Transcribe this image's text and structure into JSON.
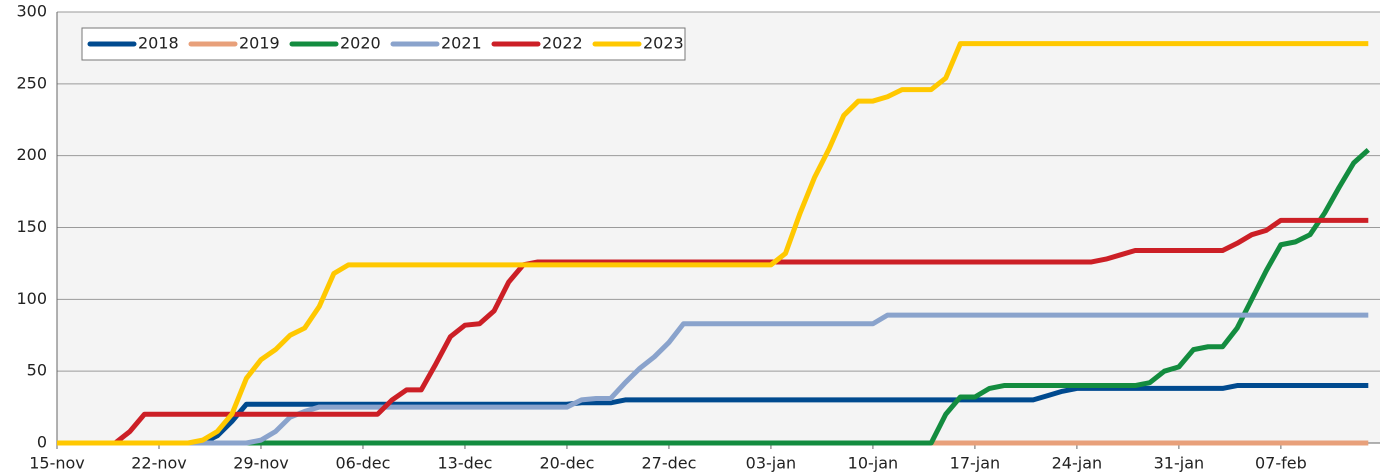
{
  "chart_data": {
    "type": "line",
    "categories": [
      "15-nov",
      null,
      null,
      null,
      null,
      null,
      null,
      "22-nov",
      null,
      null,
      null,
      null,
      null,
      null,
      "29-nov",
      null,
      null,
      null,
      null,
      null,
      null,
      "06-dec",
      null,
      null,
      null,
      null,
      null,
      null,
      "13-dec",
      null,
      null,
      null,
      null,
      null,
      null,
      "20-dec",
      null,
      null,
      null,
      null,
      null,
      null,
      "27-dec",
      null,
      null,
      null,
      null,
      null,
      null,
      "03-jan",
      null,
      null,
      null,
      null,
      null,
      null,
      "10-jan",
      null,
      null,
      null,
      null,
      null,
      null,
      "17-jan",
      null,
      null,
      null,
      null,
      null,
      null,
      "24-jan",
      null,
      null,
      null,
      null,
      null,
      null,
      "31-jan",
      null,
      null,
      null,
      null,
      null,
      null,
      "07-feb",
      null,
      null,
      null,
      null,
      null,
      null
    ],
    "series": [
      {
        "name": "2018",
        "color": "#004a8f",
        "values": [
          0,
          0,
          0,
          0,
          0,
          0,
          0,
          0,
          0,
          0,
          0,
          5,
          15,
          27,
          27,
          27,
          27,
          27,
          27,
          27,
          27,
          27,
          27,
          27,
          27,
          27,
          27,
          27,
          27,
          27,
          27,
          27,
          27,
          27,
          27,
          27,
          28,
          28,
          28,
          30,
          30,
          30,
          30,
          30,
          30,
          30,
          30,
          30,
          30,
          30,
          30,
          30,
          30,
          30,
          30,
          30,
          30,
          30,
          30,
          30,
          30,
          30,
          30,
          30,
          30,
          30,
          30,
          30,
          33,
          36,
          38,
          38,
          38,
          38,
          38,
          38,
          38,
          38,
          38,
          38,
          38,
          40,
          40,
          40,
          40,
          40,
          40,
          40,
          40,
          40,
          40
        ]
      },
      {
        "name": "2019",
        "color": "#e8a07a",
        "values": [
          0,
          0,
          0,
          0,
          0,
          0,
          0,
          0,
          0,
          0,
          0,
          0,
          0,
          0,
          0,
          0,
          0,
          0,
          0,
          0,
          0,
          0,
          0,
          0,
          0,
          0,
          0,
          0,
          0,
          0,
          0,
          0,
          0,
          0,
          0,
          0,
          0,
          0,
          0,
          0,
          0,
          0,
          0,
          0,
          0,
          0,
          0,
          0,
          0,
          0,
          0,
          0,
          0,
          0,
          0,
          0,
          0,
          0,
          0,
          0,
          0,
          0,
          0,
          0,
          0,
          0,
          0,
          0,
          0,
          0,
          0,
          0,
          0,
          0,
          0,
          0,
          0,
          0,
          0,
          0,
          0,
          0,
          0,
          0,
          0,
          0,
          0,
          0,
          0,
          0,
          0
        ]
      },
      {
        "name": "2020",
        "color": "#138c3f",
        "values": [
          0,
          0,
          0,
          0,
          0,
          0,
          0,
          0,
          0,
          0,
          0,
          0,
          0,
          0,
          0,
          0,
          0,
          0,
          0,
          0,
          0,
          0,
          0,
          0,
          0,
          0,
          0,
          0,
          0,
          0,
          0,
          0,
          0,
          0,
          0,
          0,
          0,
          0,
          0,
          0,
          0,
          0,
          0,
          0,
          0,
          0,
          0,
          0,
          0,
          0,
          0,
          0,
          0,
          0,
          0,
          0,
          0,
          0,
          0,
          0,
          0,
          20,
          32,
          32,
          38,
          40,
          40,
          40,
          40,
          40,
          40,
          40,
          40,
          40,
          40,
          42,
          50,
          53,
          65,
          67,
          67,
          80,
          100,
          120,
          138,
          140,
          145,
          160,
          178,
          195,
          204
        ]
      },
      {
        "name": "2021",
        "color": "#8aa3cc",
        "values": [
          0,
          0,
          0,
          0,
          0,
          0,
          0,
          0,
          0,
          0,
          0,
          0,
          0,
          0,
          2,
          8,
          18,
          22,
          25,
          25,
          25,
          25,
          25,
          25,
          25,
          25,
          25,
          25,
          25,
          25,
          25,
          25,
          25,
          25,
          25,
          25,
          30,
          31,
          31,
          42,
          52,
          60,
          70,
          83,
          83,
          83,
          83,
          83,
          83,
          83,
          83,
          83,
          83,
          83,
          83,
          83,
          83,
          89,
          89,
          89,
          89,
          89,
          89,
          89,
          89,
          89,
          89,
          89,
          89,
          89,
          89,
          89,
          89,
          89,
          89,
          89,
          89,
          89,
          89,
          89,
          89,
          89,
          89,
          89,
          89,
          89,
          89,
          89,
          89,
          89,
          89
        ]
      },
      {
        "name": "2022",
        "color": "#cc1f26",
        "values": [
          0,
          0,
          0,
          0,
          0,
          8,
          20,
          20,
          20,
          20,
          20,
          20,
          20,
          20,
          20,
          20,
          20,
          20,
          20,
          20,
          20,
          20,
          20,
          30,
          37,
          37,
          55,
          74,
          82,
          83,
          92,
          112,
          124,
          126,
          126,
          126,
          126,
          126,
          126,
          126,
          126,
          126,
          126,
          126,
          126,
          126,
          126,
          126,
          126,
          126,
          126,
          126,
          126,
          126,
          126,
          126,
          126,
          126,
          126,
          126,
          126,
          126,
          126,
          126,
          126,
          126,
          126,
          126,
          126,
          126,
          126,
          126,
          128,
          131,
          134,
          134,
          134,
          134,
          134,
          134,
          134,
          139,
          145,
          148,
          155,
          155,
          155,
          155,
          155,
          155,
          155
        ]
      },
      {
        "name": "2023",
        "color": "#ffc800",
        "values": [
          0,
          0,
          0,
          0,
          0,
          0,
          0,
          0,
          0,
          0,
          2,
          8,
          20,
          45,
          58,
          65,
          75,
          80,
          95,
          118,
          124,
          124,
          124,
          124,
          124,
          124,
          124,
          124,
          124,
          124,
          124,
          124,
          124,
          124,
          124,
          124,
          124,
          124,
          124,
          124,
          124,
          124,
          124,
          124,
          124,
          124,
          124,
          124,
          124,
          124,
          132,
          160,
          185,
          205,
          228,
          238,
          238,
          241,
          246,
          246,
          246,
          254,
          278,
          278,
          278,
          278,
          278,
          278,
          278,
          278,
          278,
          278,
          278,
          278,
          278,
          278,
          278,
          278,
          278,
          278,
          278,
          278,
          278,
          278,
          278,
          278,
          278,
          278,
          278,
          278,
          278
        ]
      }
    ],
    "ylim": [
      0,
      300
    ],
    "yticks": [
      0,
      50,
      100,
      150,
      200,
      250,
      300
    ],
    "grid": true,
    "legend": "top-left"
  }
}
